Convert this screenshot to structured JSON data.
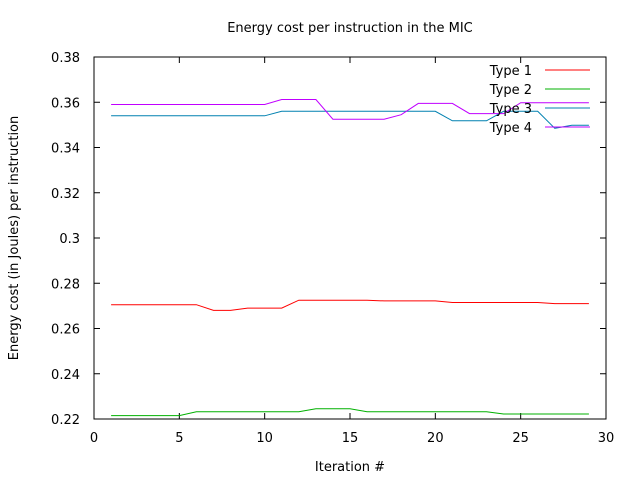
{
  "chart_data": {
    "type": "line",
    "title": "Energy cost per instruction in the MIC",
    "xlabel": "Iteration #",
    "ylabel": "Energy cost (in Joules) per instruction",
    "xlim": [
      0,
      30
    ],
    "ylim": [
      0.22,
      0.38
    ],
    "xticks": [
      "0",
      "5",
      "10",
      "15",
      "20",
      "25",
      "30"
    ],
    "yticks": [
      "0.22",
      "0.24",
      "0.26",
      "0.28",
      "0.3",
      "0.32",
      "0.34",
      "0.36",
      "0.38"
    ],
    "legend_position": "top-right",
    "x": [
      1,
      2,
      3,
      4,
      5,
      6,
      7,
      8,
      9,
      10,
      11,
      12,
      13,
      14,
      15,
      16,
      17,
      18,
      19,
      20,
      21,
      22,
      23,
      24,
      25,
      26,
      27,
      28,
      29
    ],
    "series": [
      {
        "name": "Type 1",
        "color": "#ff0000",
        "values": [
          0.2705,
          0.2705,
          0.2705,
          0.2705,
          0.2705,
          0.2705,
          0.268,
          0.268,
          0.269,
          0.269,
          0.269,
          0.2725,
          0.2725,
          0.2725,
          0.2725,
          0.2725,
          0.2722,
          0.2722,
          0.2722,
          0.2722,
          0.2715,
          0.2715,
          0.2715,
          0.2715,
          0.2715,
          0.2715,
          0.271,
          0.271,
          0.271
        ]
      },
      {
        "name": "Type 2",
        "color": "#00b000",
        "values": [
          0.2215,
          0.2215,
          0.2215,
          0.2215,
          0.2215,
          0.2232,
          0.2232,
          0.2232,
          0.2232,
          0.2232,
          0.2232,
          0.2232,
          0.2245,
          0.2245,
          0.2245,
          0.2232,
          0.2232,
          0.2232,
          0.2232,
          0.2232,
          0.2232,
          0.2232,
          0.2232,
          0.2222,
          0.2222,
          0.2222,
          0.2222,
          0.2222,
          0.2222
        ]
      },
      {
        "name": "Type 3",
        "color": "#0080b0",
        "values": [
          0.354,
          0.354,
          0.354,
          0.354,
          0.354,
          0.354,
          0.354,
          0.354,
          0.354,
          0.354,
          0.356,
          0.356,
          0.356,
          0.356,
          0.356,
          0.356,
          0.356,
          0.356,
          0.356,
          0.356,
          0.3518,
          0.3518,
          0.3518,
          0.356,
          0.356,
          0.356,
          0.3485,
          0.3498,
          0.3498
        ]
      },
      {
        "name": "Type 4",
        "color": "#c000ff",
        "values": [
          0.359,
          0.359,
          0.359,
          0.359,
          0.359,
          0.359,
          0.359,
          0.359,
          0.359,
          0.359,
          0.3612,
          0.3612,
          0.3612,
          0.3525,
          0.3525,
          0.3525,
          0.3525,
          0.3545,
          0.3595,
          0.3595,
          0.3595,
          0.355,
          0.355,
          0.355,
          0.3598,
          0.3598,
          0.3598,
          0.3598,
          0.3598
        ]
      }
    ]
  }
}
